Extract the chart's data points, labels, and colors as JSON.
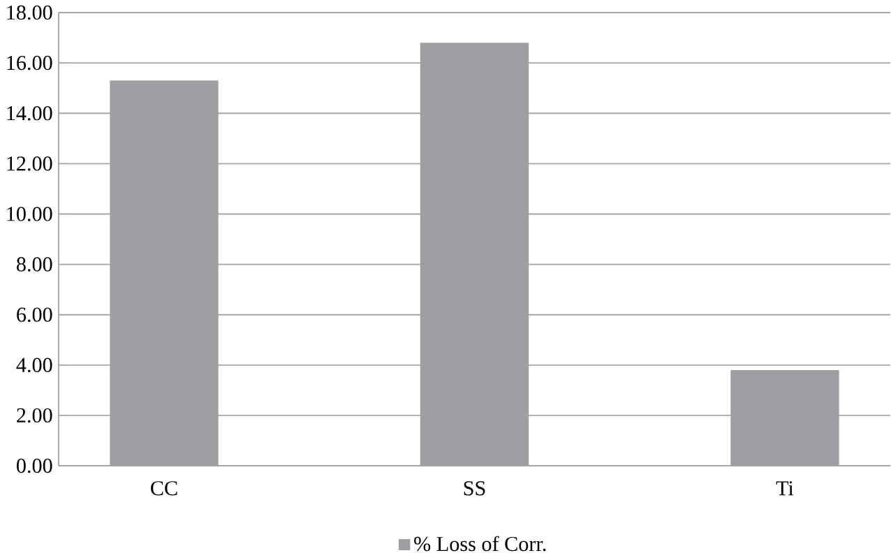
{
  "chart_data": {
    "type": "bar",
    "categories": [
      "CC",
      "SS",
      "Ti"
    ],
    "series": [
      {
        "name": "% Loss of Corr.",
        "color": "#9d9fa2",
        "values": [
          15.3,
          16.8,
          3.8
        ]
      }
    ],
    "ylim": [
      0,
      18
    ],
    "yticks": [
      {
        "value": 0,
        "label": "0.00"
      },
      {
        "value": 2,
        "label": "2.00"
      },
      {
        "value": 4,
        "label": "4.00"
      },
      {
        "value": 6,
        "label": "6.00"
      },
      {
        "value": 8,
        "label": "8.00"
      },
      {
        "value": 10,
        "label": "10.00"
      },
      {
        "value": 12,
        "label": "12.00"
      },
      {
        "value": 14,
        "label": "14.00"
      },
      {
        "value": 16,
        "label": "16.00"
      },
      {
        "value": 18,
        "label": "18.00"
      }
    ],
    "grid": "y",
    "legend": "bottom"
  }
}
